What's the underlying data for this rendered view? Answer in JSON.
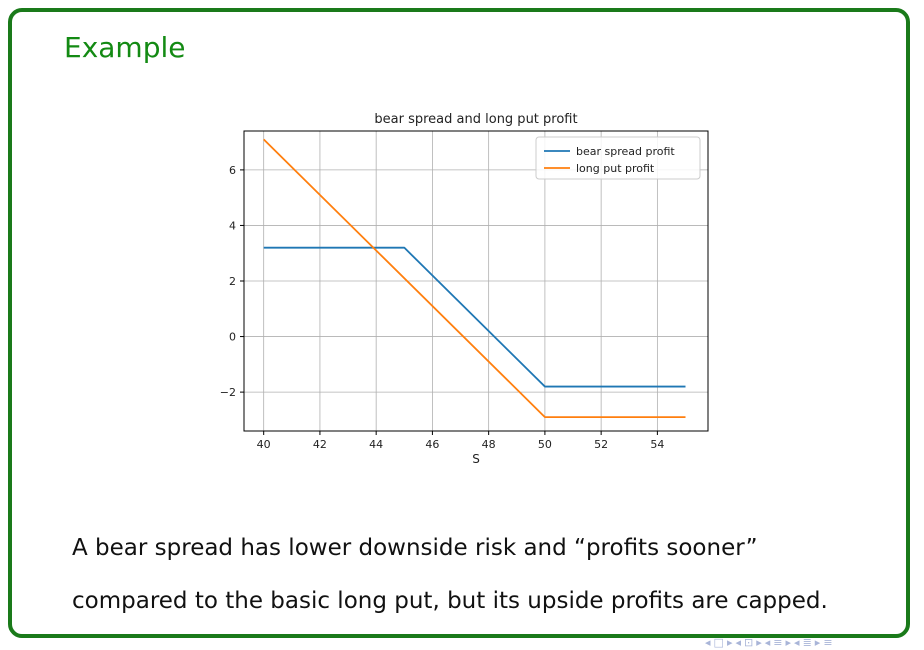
{
  "slide": {
    "block_title": "Example",
    "caption_lines": [
      "A bear spread has lower downside risk and “profits sooner”",
      "compared to the basic long put, but its upside profits are capped."
    ]
  },
  "colors": {
    "block_border": "#1a7a1a",
    "block_title": "#138a13",
    "bear_spread": "#1f77b4",
    "long_put": "#ff7f0e"
  },
  "chart_data": {
    "type": "line",
    "title": "bear spread and long put profit",
    "xlabel": "S",
    "ylabel": "",
    "xlim": [
      39.3,
      55.8
    ],
    "ylim": [
      -3.4,
      7.4
    ],
    "xticks": [
      40,
      42,
      44,
      46,
      48,
      50,
      52,
      54
    ],
    "yticks": [
      6,
      4,
      2,
      0,
      -2
    ],
    "ytick_labels": [
      "6",
      "4",
      "2",
      "0",
      "−2"
    ],
    "grid": true,
    "legend": "top-right",
    "series": [
      {
        "name": "bear spread profit",
        "color": "#1f77b4",
        "x": [
          40,
          45,
          50,
          55
        ],
        "y": [
          3.2,
          3.2,
          -1.8,
          -1.8
        ]
      },
      {
        "name": "long put profit",
        "color": "#ff7f0e",
        "x": [
          40,
          50,
          55
        ],
        "y": [
          7.1,
          -2.9,
          -2.9
        ]
      }
    ]
  },
  "nav": {
    "icons": [
      "triangle-left-icon",
      "frame-icon",
      "triangle-right-icon",
      "triangle-left-icon",
      "subsection-icon",
      "triangle-right-icon",
      "triangle-left-icon",
      "section-icon",
      "triangle-right-icon",
      "triangle-left-icon",
      "list-icon",
      "triangle-right-icon",
      "toc-icon"
    ],
    "glyphs": [
      "◂",
      "□",
      "▸",
      "◂",
      "⊡",
      "▸",
      "◂",
      "≡",
      "▸",
      "◂",
      "≣",
      "▸",
      "≡"
    ]
  }
}
